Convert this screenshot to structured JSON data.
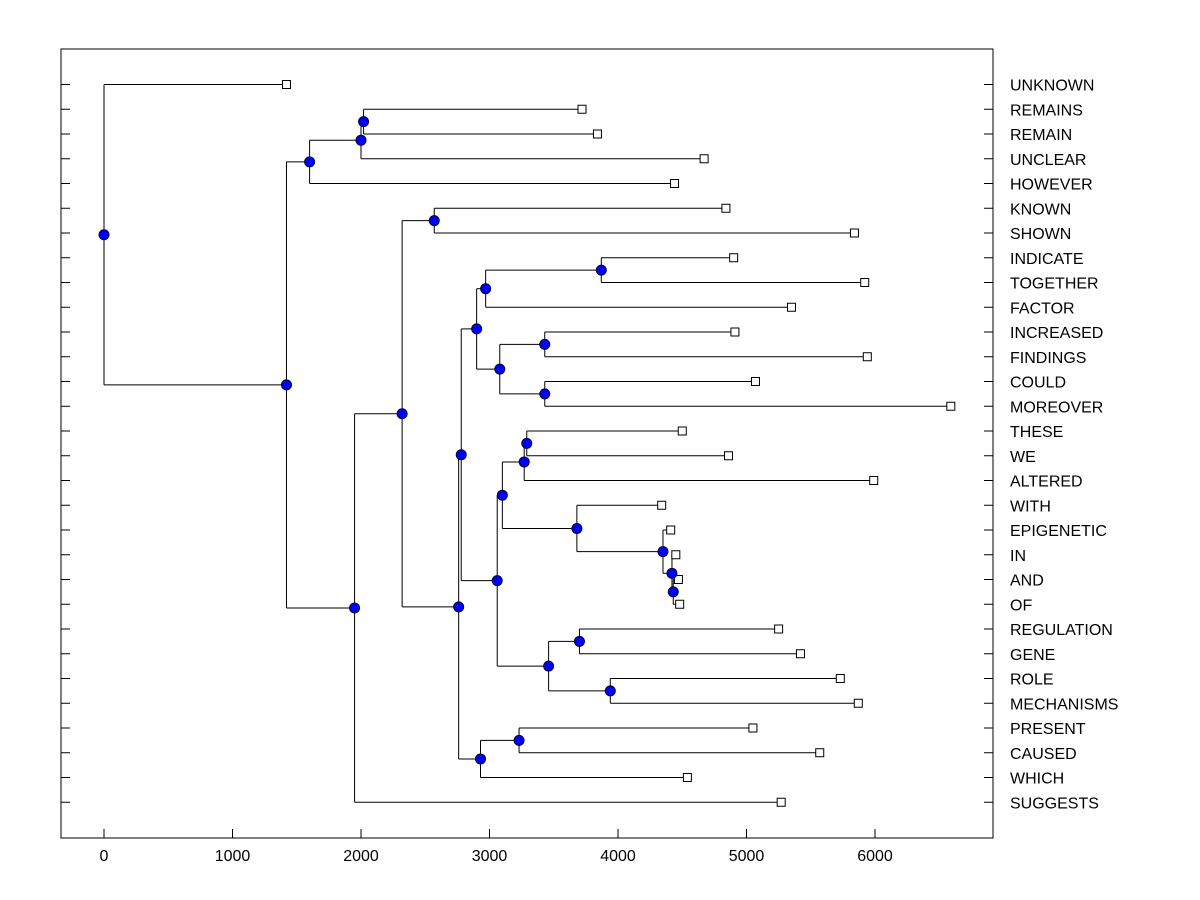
{
  "chart_data": {
    "type": "dendrogram",
    "title": "",
    "xlabel": "",
    "ylabel": "",
    "xlim": [
      -330,
      6930
    ],
    "x_ticks": [
      0,
      1000,
      2000,
      3000,
      4000,
      5000,
      6000
    ],
    "leaves": [
      {
        "id": "L0",
        "label": "UNKNOWN",
        "x": 1420
      },
      {
        "id": "L1",
        "label": "REMAINS",
        "x": 3720
      },
      {
        "id": "L2",
        "label": "REMAIN",
        "x": 3840
      },
      {
        "id": "L3",
        "label": "UNCLEAR",
        "x": 4670
      },
      {
        "id": "L4",
        "label": "HOWEVER",
        "x": 4440
      },
      {
        "id": "L5",
        "label": "KNOWN",
        "x": 4840
      },
      {
        "id": "L6",
        "label": "SHOWN",
        "x": 5840
      },
      {
        "id": "L7",
        "label": "INDICATE",
        "x": 4900
      },
      {
        "id": "L8",
        "label": "TOGETHER",
        "x": 5920
      },
      {
        "id": "L9",
        "label": "FACTOR",
        "x": 5350
      },
      {
        "id": "L10",
        "label": "INCREASED",
        "x": 4910
      },
      {
        "id": "L11",
        "label": "FINDINGS",
        "x": 5940
      },
      {
        "id": "L12",
        "label": "COULD",
        "x": 5070
      },
      {
        "id": "L13",
        "label": "MOREOVER",
        "x": 6590
      },
      {
        "id": "L14",
        "label": "THESE",
        "x": 4500
      },
      {
        "id": "L15",
        "label": "WE",
        "x": 4860
      },
      {
        "id": "L16",
        "label": "ALTERED",
        "x": 5990
      },
      {
        "id": "L17",
        "label": "WITH",
        "x": 4340
      },
      {
        "id": "L18",
        "label": "EPIGENETIC",
        "x": 4410
      },
      {
        "id": "L19",
        "label": "IN",
        "x": 4450
      },
      {
        "id": "L20",
        "label": "AND",
        "x": 4470
      },
      {
        "id": "L21",
        "label": "OF",
        "x": 4480
      },
      {
        "id": "L22",
        "label": "REGULATION",
        "x": 5250
      },
      {
        "id": "L23",
        "label": "GENE",
        "x": 5420
      },
      {
        "id": "L24",
        "label": "ROLE",
        "x": 5730
      },
      {
        "id": "L25",
        "label": "MECHANISMS",
        "x": 5870
      },
      {
        "id": "L26",
        "label": "PRESENT",
        "x": 5050
      },
      {
        "id": "L27",
        "label": "CAUSED",
        "x": 5570
      },
      {
        "id": "L28",
        "label": "WHICH",
        "x": 4540
      },
      {
        "id": "L29",
        "label": "SUGGESTS",
        "x": 5270
      }
    ],
    "merges": [
      {
        "id": "N1",
        "x": 2020,
        "children": [
          "L1",
          "L2"
        ]
      },
      {
        "id": "N2",
        "x": 2000,
        "children": [
          "N1",
          "L3"
        ]
      },
      {
        "id": "N3",
        "x": 1600,
        "children": [
          "N2",
          "L4"
        ]
      },
      {
        "id": "N4",
        "x": 2570,
        "children": [
          "L5",
          "L6"
        ]
      },
      {
        "id": "N5",
        "x": 3870,
        "children": [
          "L7",
          "L8"
        ]
      },
      {
        "id": "N6",
        "x": 2970,
        "children": [
          "N5",
          "L9"
        ]
      },
      {
        "id": "N7",
        "x": 3430,
        "children": [
          "L10",
          "L11"
        ]
      },
      {
        "id": "N8",
        "x": 3430,
        "children": [
          "L12",
          "L13"
        ]
      },
      {
        "id": "N9",
        "x": 3080,
        "children": [
          "N7",
          "N8"
        ]
      },
      {
        "id": "N10",
        "x": 2900,
        "children": [
          "N6",
          "N9"
        ]
      },
      {
        "id": "N11",
        "x": 3290,
        "children": [
          "L14",
          "L15"
        ]
      },
      {
        "id": "N12",
        "x": 3270,
        "children": [
          "N11",
          "L16"
        ]
      },
      {
        "id": "N13",
        "x": 4430,
        "children": [
          "L20",
          "L21"
        ]
      },
      {
        "id": "N14",
        "x": 4420,
        "children": [
          "L19",
          "N13"
        ]
      },
      {
        "id": "N15",
        "x": 4350,
        "children": [
          "L18",
          "N14"
        ]
      },
      {
        "id": "N16",
        "x": 3680,
        "children": [
          "L17",
          "N15"
        ]
      },
      {
        "id": "N17",
        "x": 3100,
        "children": [
          "N12",
          "N16"
        ]
      },
      {
        "id": "N18",
        "x": 3700,
        "children": [
          "L22",
          "L23"
        ]
      },
      {
        "id": "N19",
        "x": 3940,
        "children": [
          "L24",
          "L25"
        ]
      },
      {
        "id": "N20",
        "x": 3460,
        "children": [
          "N18",
          "N19"
        ]
      },
      {
        "id": "N21",
        "x": 3060,
        "children": [
          "N17",
          "N20"
        ]
      },
      {
        "id": "N22",
        "x": 2780,
        "children": [
          "N10",
          "N21"
        ]
      },
      {
        "id": "N23",
        "x": 3230,
        "children": [
          "L26",
          "L27"
        ]
      },
      {
        "id": "N24",
        "x": 2930,
        "children": [
          "N23",
          "L28"
        ]
      },
      {
        "id": "N25",
        "x": 2760,
        "children": [
          "N22",
          "N24"
        ]
      },
      {
        "id": "N26",
        "x": 2320,
        "children": [
          "N4",
          "N25"
        ]
      },
      {
        "id": "N27",
        "x": 1950,
        "children": [
          "N26",
          "L29"
        ]
      },
      {
        "id": "N28",
        "x": 1420,
        "children": [
          "N3",
          "N27"
        ]
      },
      {
        "id": "N29",
        "x": 0,
        "children": [
          "L0",
          "N28"
        ]
      }
    ],
    "colors": {
      "node_fill": "#0000ff",
      "node_stroke": "#000033",
      "line": "#000000",
      "leaf_fill": "#ffffff"
    }
  }
}
